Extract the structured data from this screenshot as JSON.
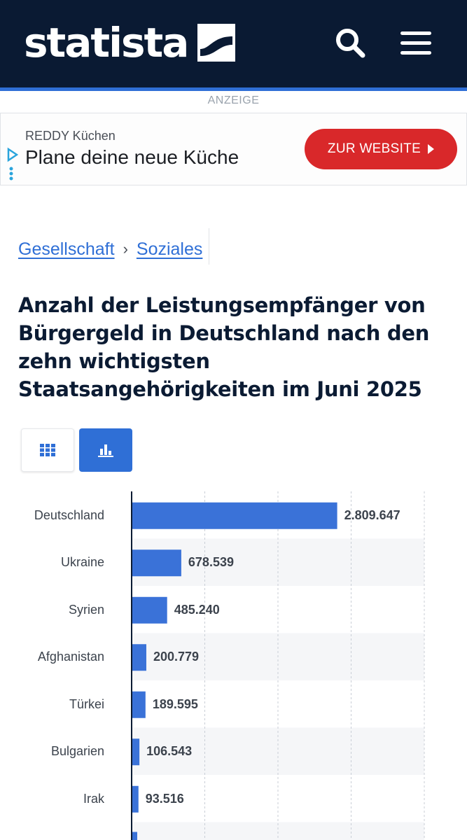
{
  "header": {
    "logo_text": "statista",
    "background": "#0a1a33",
    "accent": "#2f6fd6",
    "icons": [
      "search-icon",
      "hamburger-menu-icon"
    ]
  },
  "ad": {
    "label": "ANZEIGE",
    "brand": "REDDY Küchen",
    "headline": "Plane deine neue Küche",
    "cta_label": "ZUR WEBSITE",
    "cta_color": "#d9282a"
  },
  "breadcrumb": {
    "items": [
      {
        "label": "Gesellschaft"
      },
      {
        "label": "Soziales"
      }
    ],
    "separator": "›"
  },
  "title": "Anzahl der Leistungsempfänger von Bürgergeld in Deutschland nach den zehn wichtigsten Staatsangehörigkeiten im Juni 2025",
  "view_toggles": {
    "table_icon": "grid-icon",
    "chart_icon": "bar-chart-icon",
    "active": "chart"
  },
  "chart_data": {
    "type": "bar",
    "orientation": "horizontal",
    "categories": [
      "Deutschland",
      "Ukraine",
      "Syrien",
      "Afghanistan",
      "Türkei",
      "Bulgarien",
      "Irak"
    ],
    "values": [
      2809647,
      678539,
      485240,
      200779,
      189595,
      106543,
      93516
    ],
    "value_labels": [
      "2.809.647",
      "678.539",
      "485.240",
      "200.779",
      "189.595",
      "106.543",
      "93.516"
    ],
    "xlim": [
      0,
      4000000
    ],
    "grid": true,
    "bar_color": "#3a72d8"
  }
}
